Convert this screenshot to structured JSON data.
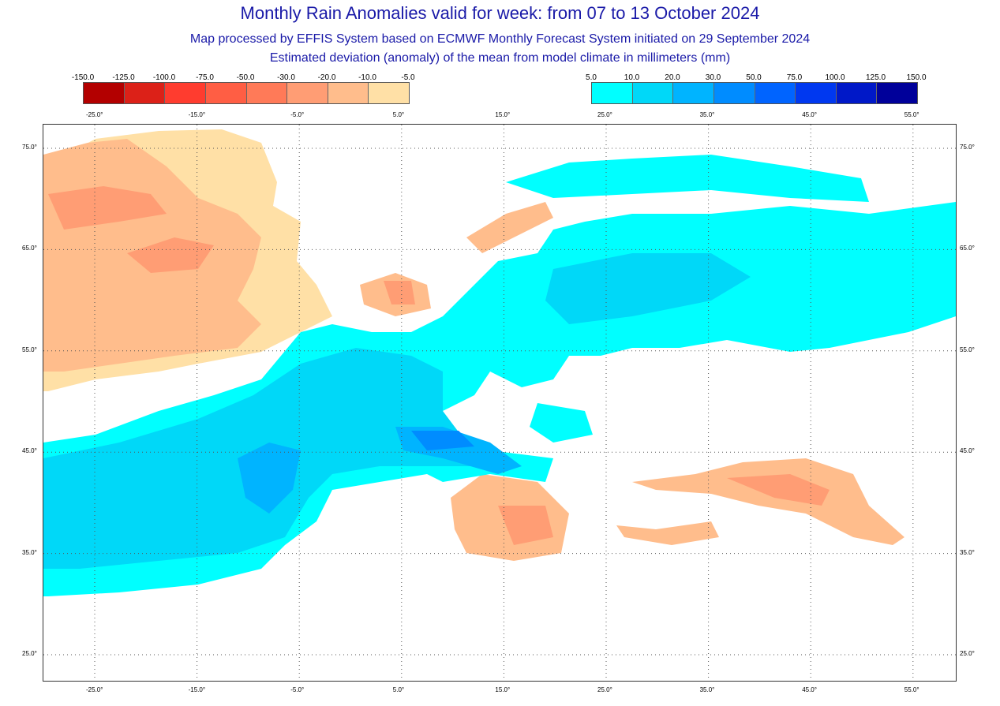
{
  "header": {
    "title": "Monthly Rain Anomalies valid for week: from 07 to 13 October 2024",
    "subtitle1": "Map processed by EFFIS System based on ECMWF Monthly Forecast System initiated on 29 September 2024",
    "subtitle2": "Estimated deviation (anomaly) of the mean from model climate in millimeters (mm)"
  },
  "legend_negative": {
    "labels": [
      "-150.0",
      "-125.0",
      "-100.0",
      "-75.0",
      "-50.0",
      "-30.0",
      "-20.0",
      "-10.0",
      "-5.0"
    ],
    "colors": [
      "#b30000",
      "#dc2118",
      "#ff3c2f",
      "#ff5e44",
      "#ff7a58",
      "#ff9d74",
      "#ffbd8c",
      "#ffe0a6"
    ]
  },
  "legend_positive": {
    "labels": [
      "5.0",
      "10.0",
      "20.0",
      "30.0",
      "50.0",
      "75.0",
      "100.0",
      "125.0",
      "150.0"
    ],
    "colors": [
      "#00ffff",
      "#00d8f8",
      "#00b4ff",
      "#008cff",
      "#0064ff",
      "#0038f0",
      "#0018c8",
      "#00009a"
    ]
  },
  "axes": {
    "lon_ticks": [
      "-25.0°",
      "-15.0°",
      "-5.0°",
      "5.0°",
      "15.0°",
      "25.0°",
      "35.0°",
      "45.0°",
      "55.0°"
    ],
    "lat_ticks": [
      "75.0°",
      "65.0°",
      "55.0°",
      "45.0°",
      "35.0°",
      "25.0°"
    ]
  }
}
